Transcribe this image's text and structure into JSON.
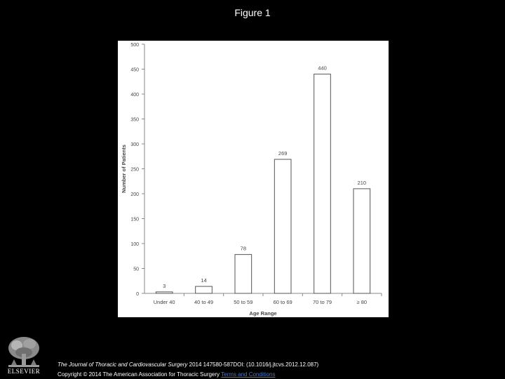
{
  "slide": {
    "title": "Figure 1"
  },
  "footer": {
    "journal": "The Journal of Thoracic and Cardiovascular Surgery",
    "citation_rest": " 2014 147580-587DOI: (10.1016/j.jtcvs.2012.12.087)",
    "copyright": "Copyright © 2014 The American Association for Thoracic Surgery ",
    "terms_link": "Terms and Conditions",
    "publisher": "ELSEVIER"
  },
  "colors": {
    "background": "#000000",
    "panel": "#ffffff",
    "bar_fill": "#ffffff",
    "bar_stroke": "#555555",
    "link": "#4a78c8"
  },
  "chart_data": {
    "type": "bar",
    "title": "",
    "xlabel": "Age Range",
    "ylabel": "Number of Patients",
    "categories": [
      "Under 40",
      "40 to 49",
      "50 to 59",
      "60 to 69",
      "70 to 79",
      "≥ 80"
    ],
    "values": [
      3,
      14,
      78,
      269,
      440,
      210
    ],
    "data_labels": [
      "3",
      "14",
      "78",
      "269",
      "440",
      "210"
    ],
    "ylim": [
      0,
      500
    ],
    "yticks": [
      "0",
      "50",
      "100",
      "150",
      "200",
      "250",
      "300",
      "350",
      "400",
      "450",
      "500"
    ],
    "grid": false,
    "legend": "none"
  }
}
